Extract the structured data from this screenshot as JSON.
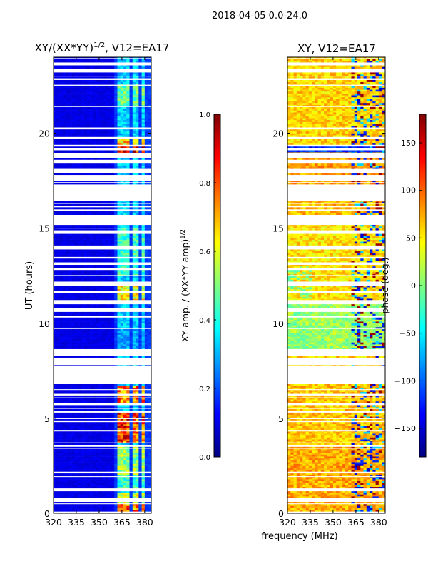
{
  "suptitle": "2018-04-05 0.0-24.0",
  "chart_data": [
    {
      "type": "heatmap",
      "title_main": "XY/(XX*YY)",
      "title_sup": "1/2",
      "title_rest": ", V12=EA17",
      "xlabel": "",
      "ylabel": "UT (hours)",
      "xlim": [
        320,
        384.3
      ],
      "ylim": [
        0,
        24
      ],
      "xticks": [
        320,
        335,
        350,
        365,
        380
      ],
      "yticks": [
        0,
        5,
        10,
        15,
        20
      ],
      "colorbar": {
        "label_main": "XY amp. / (XX*YY amp)",
        "label_sup": "1/2",
        "range": [
          0,
          1
        ],
        "ticks": [
          "0.0",
          "0.2",
          "0.4",
          "0.6",
          "0.8",
          "1.0"
        ],
        "tick_values": [
          0,
          0.2,
          0.4,
          0.6,
          0.8,
          1.0
        ],
        "colormap": "jet"
      },
      "background_level": 0.08,
      "signal_blocks_mhz": [
        [
          362.5,
          366
        ],
        [
          367,
          371
        ],
        [
          372.5,
          376
        ],
        [
          377.5,
          381
        ]
      ],
      "default_block_level": 0.35,
      "amp_levels": [
        {
          "t": [
            0.05,
            0.5
          ],
          "v": 0.8
        },
        {
          "t": [
            0.5,
            1.1
          ],
          "v": 0.6
        },
        {
          "t": [
            1.3,
            2.0
          ],
          "v": 0.45
        },
        {
          "t": [
            2.0,
            3.5
          ],
          "v": 0.55
        },
        {
          "t": [
            3.7,
            5.3
          ],
          "v": 0.85
        },
        {
          "t": [
            5.8,
            6.7
          ],
          "v": 0.8
        },
        {
          "t": [
            8.7,
            9.7
          ],
          "v": 0.3
        },
        {
          "t": [
            11.2,
            12.0
          ],
          "v": 0.65
        },
        {
          "t": [
            12.5,
            15.0
          ],
          "v": 0.45
        },
        {
          "t": [
            18.95,
            19.3
          ],
          "v": 0.95
        },
        {
          "t": [
            19.4,
            19.75
          ],
          "v": 0.7
        },
        {
          "t": [
            21.4,
            22.6
          ],
          "v": 0.5
        }
      ]
    },
    {
      "type": "heatmap",
      "title_main": "XY, V12=EA17",
      "xlabel": "frequency (MHz)",
      "ylabel": "",
      "xlim": [
        320,
        384.3
      ],
      "ylim": [
        0,
        24
      ],
      "xticks": [
        320,
        335,
        350,
        365,
        380
      ],
      "yticks": [
        0,
        5,
        10,
        15,
        20
      ],
      "colorbar": {
        "label_main": "phase (deg.)",
        "range": [
          -180,
          180
        ],
        "ticks": [
          "−150",
          "−100",
          "−50",
          "0",
          "50",
          "100",
          "150"
        ],
        "tick_values": [
          -150,
          -100,
          -50,
          0,
          50,
          100,
          150
        ],
        "colormap": "jet"
      },
      "background_phase": 60,
      "phase_levels": [
        {
          "t": [
            0,
            3.5
          ],
          "v": 75
        },
        {
          "t": [
            3.5,
            7
          ],
          "v": 65
        },
        {
          "t": [
            8.6,
            11
          ],
          "v": 10
        },
        {
          "t": [
            11,
            15.2
          ],
          "v": 55
        },
        {
          "t": [
            15.2,
            16.5
          ],
          "v": 70
        },
        {
          "t": [
            17.3,
            19
          ],
          "v": 80
        },
        {
          "t": [
            19,
            19.3
          ],
          "v": -120
        },
        {
          "t": [
            19.3,
            24
          ],
          "v": 60
        }
      ]
    }
  ],
  "flagged_hours": [
    [
      0,
      0.07
    ],
    [
      0.48,
      0.52
    ],
    [
      0.6,
      0.67
    ],
    [
      0.74,
      0.78
    ],
    [
      1.16,
      1.31
    ],
    [
      1.91,
      1.95
    ],
    [
      2.12,
      2.16
    ],
    [
      3.4,
      3.44
    ],
    [
      3.55,
      3.59
    ],
    [
      3.69,
      3.73
    ],
    [
      4.31,
      4.35
    ],
    [
      4.81,
      4.85
    ],
    [
      4.96,
      5.0
    ],
    [
      5.31,
      5.35
    ],
    [
      5.5,
      5.54
    ],
    [
      5.7,
      5.78
    ],
    [
      6.06,
      6.1
    ],
    [
      6.23,
      6.27
    ],
    [
      6.49,
      6.53
    ],
    [
      6.8,
      6.95
    ],
    [
      7.02,
      7.36
    ],
    [
      7.44,
      7.74
    ],
    [
      7.81,
      8.15
    ],
    [
      8.3,
      8.64
    ],
    [
      9.7,
      9.74
    ],
    [
      10.33,
      10.37
    ],
    [
      10.6,
      10.78
    ],
    [
      11.04,
      11.22
    ],
    [
      11.64,
      11.68
    ],
    [
      11.98,
      12.17
    ],
    [
      12.49,
      12.53
    ],
    [
      12.83,
      12.87
    ],
    [
      13.07,
      13.2
    ],
    [
      13.43,
      13.47
    ],
    [
      13.88,
      13.95
    ],
    [
      14.02,
      14.06
    ],
    [
      14.72,
      14.76
    ],
    [
      14.83,
      14.87
    ],
    [
      14.98,
      15.02
    ],
    [
      15.17,
      15.7
    ],
    [
      15.93,
      15.97
    ],
    [
      16.13,
      16.17
    ],
    [
      16.28,
      16.32
    ],
    [
      16.45,
      17.3
    ],
    [
      17.38,
      17.42
    ],
    [
      17.47,
      17.8
    ],
    [
      17.9,
      18.06
    ],
    [
      18.08,
      18.12
    ],
    [
      18.4,
      18.6
    ],
    [
      18.7,
      18.93
    ],
    [
      19.12,
      19.2
    ],
    [
      19.3,
      19.38
    ],
    [
      19.72,
      19.8
    ],
    [
      20.25,
      20.3
    ],
    [
      21.38,
      21.42
    ],
    [
      22.5,
      22.55
    ],
    [
      22.83,
      22.87
    ],
    [
      22.98,
      23.02
    ],
    [
      23.2,
      23.28
    ],
    [
      23.35,
      23.4
    ],
    [
      23.57,
      23.72
    ],
    [
      23.9,
      23.95
    ]
  ]
}
